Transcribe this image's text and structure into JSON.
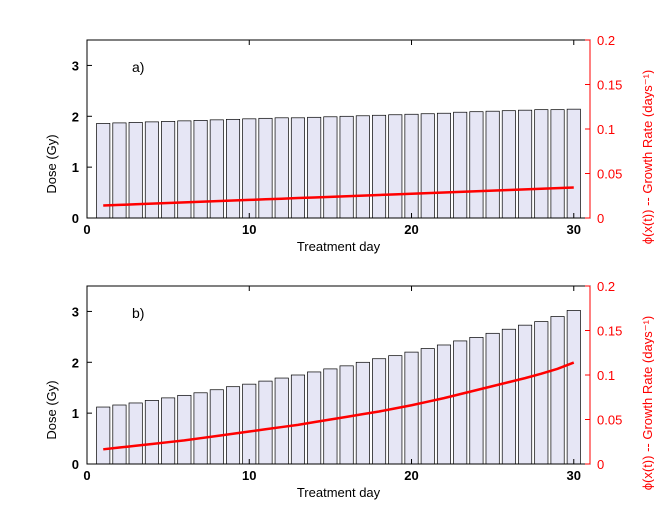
{
  "chart_data": [
    {
      "type": "bar",
      "panel_label": "a)",
      "xlabel": "Treatment day",
      "ylabel": "Dose (Gy)",
      "y2label": "ϕ(x(t)) -- Growth Rate (days⁻¹)",
      "xlim": [
        0,
        31
      ],
      "ylim": [
        0,
        3.5
      ],
      "y2lim": [
        0,
        0.2
      ],
      "xticks": [
        "0",
        "10",
        "20",
        "30"
      ],
      "yticks": [
        "0",
        "1",
        "2",
        "3"
      ],
      "y2ticks": [
        "0",
        "0.05",
        "0.1",
        "0.15",
        "0.2"
      ],
      "bar_color": "#e6e6f5",
      "line_color": "#ff0000",
      "days": [
        1,
        2,
        3,
        4,
        5,
        6,
        7,
        8,
        9,
        10,
        11,
        12,
        13,
        14,
        15,
        16,
        17,
        18,
        19,
        20,
        21,
        22,
        23,
        24,
        25,
        26,
        27,
        28,
        29,
        30
      ],
      "dose": [
        1.86,
        1.87,
        1.88,
        1.89,
        1.9,
        1.91,
        1.92,
        1.93,
        1.94,
        1.95,
        1.96,
        1.97,
        1.97,
        1.98,
        1.99,
        2.0,
        2.01,
        2.02,
        2.03,
        2.04,
        2.05,
        2.06,
        2.08,
        2.09,
        2.1,
        2.11,
        2.12,
        2.13,
        2.13,
        2.14
      ],
      "growth_rate": [
        0.014,
        0.0147,
        0.0154,
        0.0161,
        0.0168,
        0.0175,
        0.0182,
        0.0189,
        0.0196,
        0.0203,
        0.021,
        0.0217,
        0.0224,
        0.0231,
        0.0238,
        0.0245,
        0.0252,
        0.0259,
        0.0266,
        0.0273,
        0.028,
        0.0287,
        0.0294,
        0.0301,
        0.0308,
        0.0315,
        0.0322,
        0.0329,
        0.0336,
        0.0343
      ]
    },
    {
      "type": "bar",
      "panel_label": "b)",
      "xlabel": "Treatment day",
      "ylabel": "Dose (Gy)",
      "y2label": "ϕ(x(t)) -- Growth Rate (days⁻¹)",
      "xlim": [
        0,
        31
      ],
      "ylim": [
        0,
        3.5
      ],
      "y2lim": [
        0,
        0.2
      ],
      "xticks": [
        "0",
        "10",
        "20",
        "30"
      ],
      "yticks": [
        "0",
        "1",
        "2",
        "3"
      ],
      "y2ticks": [
        "0",
        "0.05",
        "0.1",
        "0.15",
        "0.2"
      ],
      "bar_color": "#e6e6f5",
      "line_color": "#ff0000",
      "days": [
        1,
        2,
        3,
        4,
        5,
        6,
        7,
        8,
        9,
        10,
        11,
        12,
        13,
        14,
        15,
        16,
        17,
        18,
        19,
        20,
        21,
        22,
        23,
        24,
        25,
        26,
        27,
        28,
        29,
        30
      ],
      "dose": [
        1.12,
        1.16,
        1.2,
        1.25,
        1.3,
        1.35,
        1.4,
        1.46,
        1.52,
        1.57,
        1.63,
        1.69,
        1.75,
        1.81,
        1.87,
        1.93,
        2.0,
        2.07,
        2.13,
        2.2,
        2.27,
        2.34,
        2.42,
        2.49,
        2.57,
        2.65,
        2.73,
        2.8,
        2.9,
        3.02
      ],
      "growth_rate": [
        0.0165,
        0.0185,
        0.0205,
        0.0225,
        0.0245,
        0.0265,
        0.029,
        0.0315,
        0.034,
        0.0365,
        0.039,
        0.0415,
        0.044,
        0.047,
        0.05,
        0.053,
        0.056,
        0.059,
        0.0625,
        0.066,
        0.07,
        0.074,
        0.0785,
        0.083,
        0.0875,
        0.092,
        0.0965,
        0.1015,
        0.107,
        0.114
      ]
    }
  ]
}
